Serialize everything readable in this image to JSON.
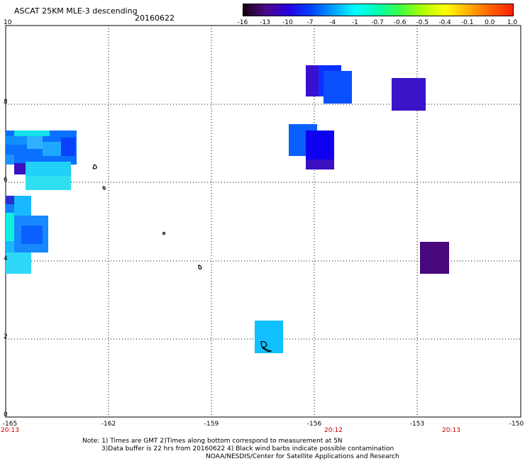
{
  "header": {
    "title": "ASCAT 25KM MLE-3 descending",
    "date": "20160622"
  },
  "colorbar": {
    "labels": [
      "-16",
      "-13",
      "-10",
      "-7",
      "-4",
      "-1",
      "-0.7",
      "-0.6",
      "-0.5",
      "-0.4",
      "-0.1",
      "0.0",
      "1.0"
    ],
    "colors": [
      "#1a0010",
      "#4a0a8a",
      "#2a00e0",
      "#0040ff",
      "#00a0ff",
      "#00ffff",
      "#00ffb0",
      "#40ff40",
      "#b0ff00",
      "#ffff00",
      "#ffb000",
      "#ff6000",
      "#ff2000"
    ]
  },
  "axes": {
    "y_labels": [
      "10",
      "8",
      "6",
      "4",
      "2",
      "0"
    ],
    "x_labels": [
      "-165",
      "-162",
      "-159",
      "-156",
      "-153",
      "-150"
    ],
    "time_labels": [
      "20:13",
      "20:12",
      "20:13"
    ]
  },
  "notes": {
    "line1": "Note: 1) Times are GMT 2)Times along bottom correspond to measurement at 5N",
    "line2": "3)Data buffer is 22 hrs from 20160622 4) Black wind barbs indicate possible contamination",
    "line3": "NOAA/NESDIS/Center for Satellite Applications and Research"
  }
}
